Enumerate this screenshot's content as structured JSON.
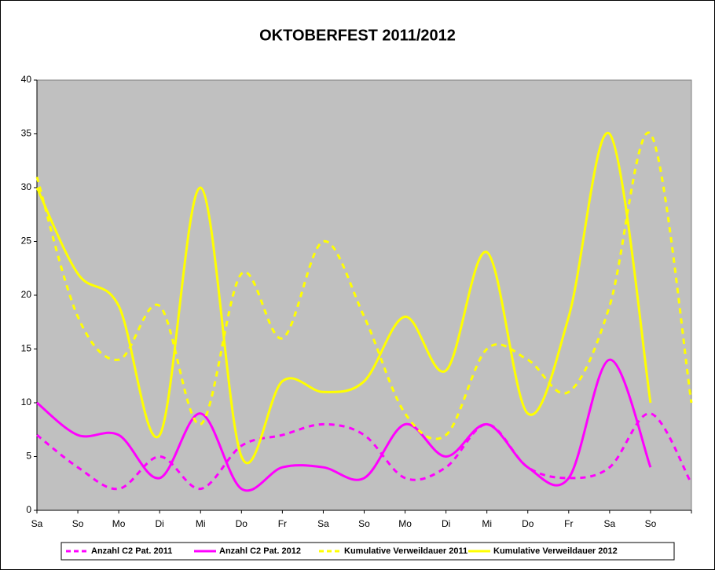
{
  "chart_data": {
    "type": "line",
    "title": "OKTOBERFEST 2011/2012",
    "categories": [
      "Sa",
      "So",
      "Mo",
      "Di",
      "Mi",
      "Do",
      "Fr",
      "Sa",
      "So",
      "Mo",
      "Di",
      "Mi",
      "Do",
      "Fr",
      "Sa",
      "So",
      null
    ],
    "ylim": [
      0,
      40
    ],
    "yticks": [
      0,
      5,
      10,
      15,
      20,
      25,
      30,
      35,
      40
    ],
    "smooth": true,
    "background": "#c0c0c0",
    "series": [
      {
        "name": "Anzahl C2 Pat. 2011",
        "color": "#ff00ff",
        "dashed": true,
        "values": [
          7,
          4,
          2,
          5,
          2,
          6,
          7,
          8,
          7,
          3,
          4,
          8,
          4,
          3,
          4,
          9,
          2.5
        ]
      },
      {
        "name": "Anzahl C2 Pat. 2012",
        "color": "#ff00ff",
        "dashed": false,
        "values": [
          10,
          7,
          7,
          3,
          9,
          2,
          4,
          4,
          3,
          8,
          5,
          8,
          4,
          3,
          14,
          4,
          null
        ]
      },
      {
        "name": "Kumulative Verweildauer 2011",
        "color": "#ffff00",
        "dashed": true,
        "values": [
          31,
          18,
          14,
          19,
          8,
          22,
          16,
          25,
          18,
          9,
          7,
          15,
          14,
          11,
          19,
          35,
          10
        ]
      },
      {
        "name": "Kumulative Verweildauer 2012",
        "color": "#ffff00",
        "dashed": false,
        "values": [
          30,
          22,
          19,
          7,
          30,
          5,
          12,
          11,
          12,
          18,
          13,
          24,
          9,
          18,
          35,
          10,
          null
        ]
      }
    ]
  }
}
